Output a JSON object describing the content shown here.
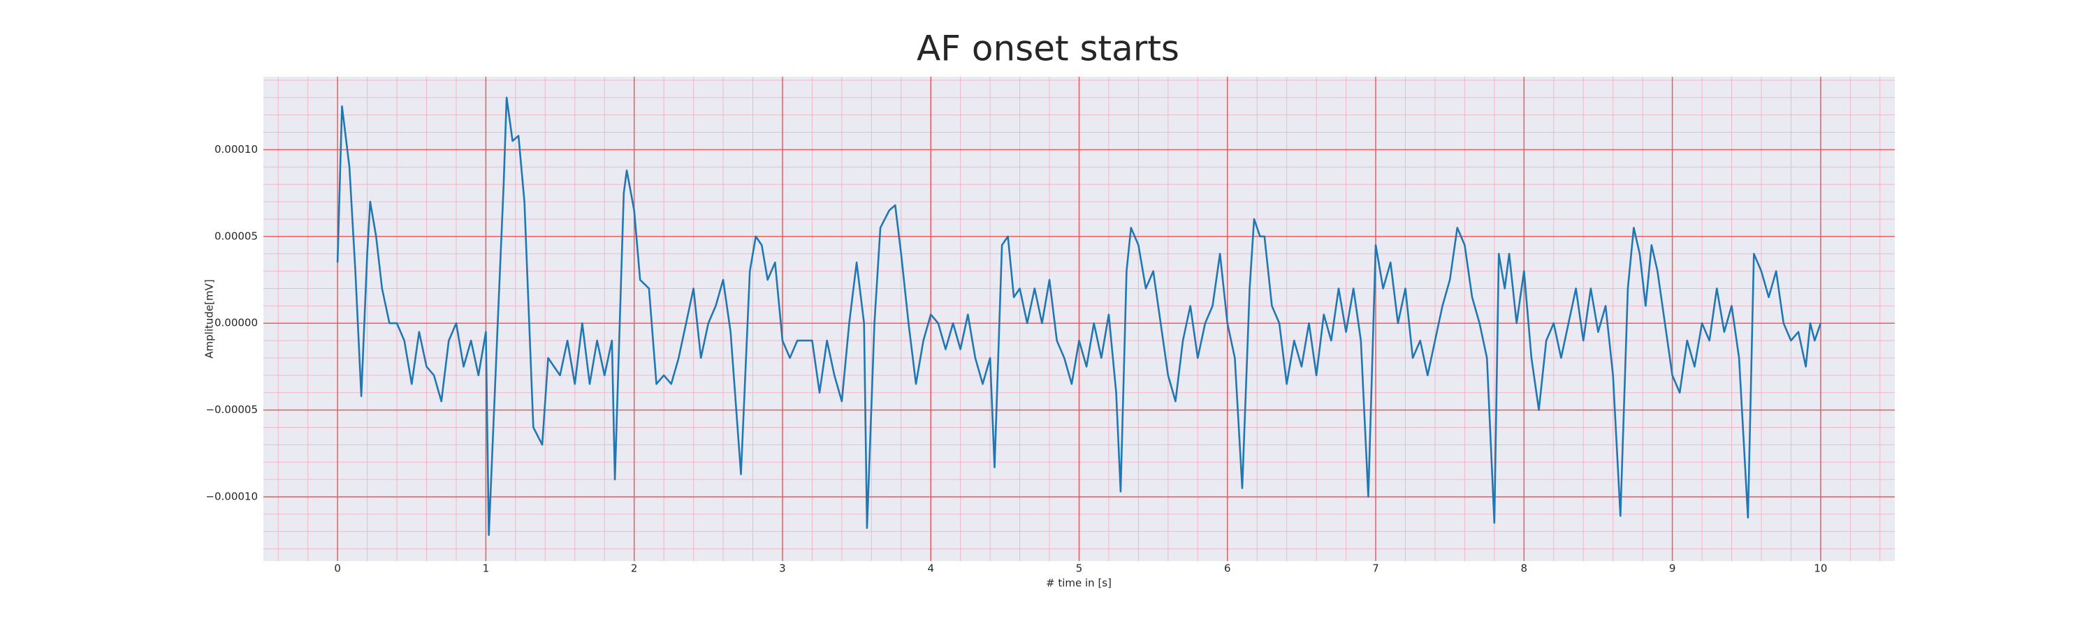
{
  "chart_data": {
    "type": "line",
    "title": "AF onset starts",
    "xlabel": "# time in [s]",
    "ylabel": "Amplitude[mV]",
    "color": "#1f77b4",
    "grid": true,
    "minor_grid": true,
    "xlim": [
      -0.5,
      10.5
    ],
    "ylim": [
      -0.000137,
      0.000142
    ],
    "xticks": [
      0,
      1,
      2,
      3,
      4,
      5,
      6,
      7,
      8,
      9,
      10
    ],
    "yticks": [
      {
        "value": -0.0001,
        "label": "−0.00010"
      },
      {
        "value": -5e-05,
        "label": "−0.00005"
      },
      {
        "value": 0,
        "label": "0.00000"
      },
      {
        "value": 5e-05,
        "label": "0.00005"
      },
      {
        "value": 0.0001,
        "label": "0.00010"
      }
    ],
    "x": [
      0,
      0.03,
      0.08,
      0.12,
      0.16,
      0.2,
      0.22,
      0.26,
      0.3,
      0.35,
      0.4,
      0.45,
      0.5,
      0.55,
      0.6,
      0.65,
      0.7,
      0.75,
      0.8,
      0.85,
      0.9,
      0.95,
      1.0,
      1.02,
      1.08,
      1.12,
      1.14,
      1.18,
      1.22,
      1.26,
      1.32,
      1.38,
      1.42,
      1.5,
      1.55,
      1.6,
      1.65,
      1.7,
      1.75,
      1.8,
      1.85,
      1.87,
      1.93,
      1.95,
      2.0,
      2.04,
      2.1,
      2.15,
      2.2,
      2.25,
      2.3,
      2.35,
      2.4,
      2.45,
      2.5,
      2.55,
      2.6,
      2.65,
      2.72,
      2.78,
      2.82,
      2.86,
      2.9,
      2.95,
      3.0,
      3.05,
      3.1,
      3.2,
      3.25,
      3.3,
      3.35,
      3.4,
      3.45,
      3.5,
      3.55,
      3.57,
      3.62,
      3.66,
      3.72,
      3.76,
      3.8,
      3.85,
      3.9,
      3.95,
      4.0,
      4.05,
      4.1,
      4.15,
      4.2,
      4.25,
      4.3,
      4.35,
      4.4,
      4.43,
      4.48,
      4.52,
      4.56,
      4.6,
      4.65,
      4.7,
      4.75,
      4.8,
      4.85,
      4.9,
      4.95,
      5.0,
      5.05,
      5.1,
      5.15,
      5.2,
      5.25,
      5.28,
      5.32,
      5.35,
      5.4,
      5.45,
      5.5,
      5.55,
      5.6,
      5.65,
      5.7,
      5.75,
      5.8,
      5.85,
      5.9,
      5.95,
      6.0,
      6.05,
      6.1,
      6.15,
      6.18,
      6.22,
      6.25,
      6.3,
      6.35,
      6.4,
      6.45,
      6.5,
      6.55,
      6.6,
      6.65,
      6.7,
      6.75,
      6.8,
      6.85,
      6.9,
      6.95,
      7.0,
      7.05,
      7.1,
      7.15,
      7.2,
      7.25,
      7.3,
      7.35,
      7.4,
      7.45,
      7.5,
      7.55,
      7.6,
      7.65,
      7.7,
      7.75,
      7.8,
      7.83,
      7.87,
      7.9,
      7.95,
      8.0,
      8.05,
      8.1,
      8.15,
      8.2,
      8.25,
      8.3,
      8.35,
      8.4,
      8.45,
      8.5,
      8.55,
      8.6,
      8.65,
      8.7,
      8.74,
      8.78,
      8.82,
      8.86,
      8.9,
      8.95,
      9.0,
      9.05,
      9.1,
      9.15,
      9.2,
      9.25,
      9.3,
      9.35,
      9.4,
      9.45,
      9.51,
      9.55,
      9.6,
      9.65,
      9.7,
      9.75,
      9.8,
      9.85,
      9.9,
      9.93,
      9.96,
      10.0
    ],
    "values": [
      3.5e-05,
      0.000125,
      9e-05,
      3e-05,
      -4.2e-05,
      4e-05,
      7e-05,
      5e-05,
      2e-05,
      0,
      0,
      -1e-05,
      -3.5e-05,
      -5e-06,
      -2.5e-05,
      -3e-05,
      -4.5e-05,
      -1e-05,
      0,
      -2.5e-05,
      -1e-05,
      -3e-05,
      -5e-06,
      -0.000122,
      0,
      8e-05,
      0.00013,
      0.000105,
      0.000108,
      7e-05,
      -6e-05,
      -7e-05,
      -2e-05,
      -3e-05,
      -1e-05,
      -3.5e-05,
      0,
      -3.5e-05,
      -1e-05,
      -3e-05,
      -1e-05,
      -9e-05,
      7.5e-05,
      8.8e-05,
      6.5e-05,
      2.5e-05,
      2e-05,
      -3.5e-05,
      -3e-05,
      -3.5e-05,
      -2e-05,
      0,
      2e-05,
      -2e-05,
      0,
      1e-05,
      2.5e-05,
      -5e-06,
      -8.7e-05,
      3e-05,
      5e-05,
      4.5e-05,
      2.5e-05,
      3.5e-05,
      -1e-05,
      -2e-05,
      -1e-05,
      -1e-05,
      -4e-05,
      -1e-05,
      -3e-05,
      -4.5e-05,
      0,
      3.5e-05,
      0,
      -0.000118,
      0,
      5.5e-05,
      6.5e-05,
      6.8e-05,
      4e-05,
      0,
      -3.5e-05,
      -1e-05,
      5e-06,
      0,
      -1.5e-05,
      0,
      -1.5e-05,
      5e-06,
      -2e-05,
      -3.5e-05,
      -2e-05,
      -8.3e-05,
      4.5e-05,
      5e-05,
      1.5e-05,
      2e-05,
      0,
      2e-05,
      0,
      2.5e-05,
      -1e-05,
      -2e-05,
      -3.5e-05,
      -1e-05,
      -2.5e-05,
      0,
      -2e-05,
      5e-06,
      -4e-05,
      -9.7e-05,
      3e-05,
      5.5e-05,
      4.5e-05,
      2e-05,
      3e-05,
      0,
      -3e-05,
      -4.5e-05,
      -1e-05,
      1e-05,
      -2e-05,
      0,
      1e-05,
      4e-05,
      0,
      -2e-05,
      -9.5e-05,
      2e-05,
      6e-05,
      5e-05,
      5e-05,
      1e-05,
      0,
      -3.5e-05,
      -1e-05,
      -2.5e-05,
      0,
      -3e-05,
      5e-06,
      -1e-05,
      2e-05,
      -5e-06,
      2e-05,
      -1e-05,
      -0.0001,
      4.5e-05,
      2e-05,
      3.5e-05,
      0,
      2e-05,
      -2e-05,
      -1e-05,
      -3e-05,
      -1e-05,
      1e-05,
      2.5e-05,
      5.5e-05,
      4.5e-05,
      1.5e-05,
      0,
      -2e-05,
      -0.000115,
      4e-05,
      2e-05,
      4e-05,
      0,
      3e-05,
      -2e-05,
      -5e-05,
      -1e-05,
      0,
      -2e-05,
      0,
      2e-05,
      -1e-05,
      2e-05,
      -5e-06,
      1e-05,
      -3e-05,
      -0.000111,
      2e-05,
      5.5e-05,
      4e-05,
      1e-05,
      4.5e-05,
      3e-05,
      0,
      -3e-05,
      -4e-05,
      -1e-05,
      -2.5e-05,
      0,
      -1e-05,
      2e-05,
      -5e-06,
      1e-05,
      -2e-05,
      -0.000112,
      4e-05,
      3e-05,
      1.5e-05,
      3e-05,
      0,
      -1e-05,
      -5e-06,
      -2.5e-05,
      0,
      -1e-05,
      0
    ]
  }
}
